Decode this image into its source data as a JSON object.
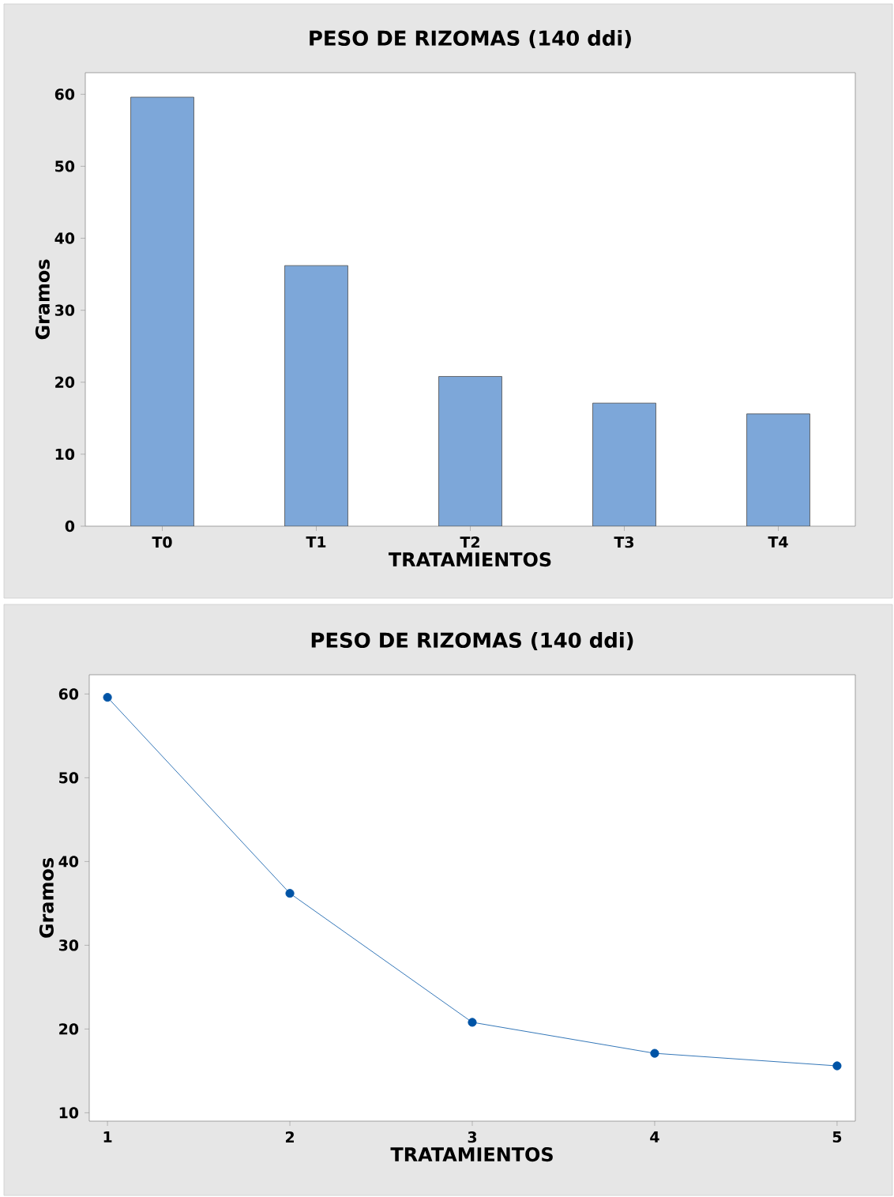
{
  "chart_data": [
    {
      "type": "bar",
      "title": "PESO DE RIZOMAS (140 ddi)",
      "xlabel": "TRATAMIENTOS",
      "ylabel": "Gramos",
      "categories": [
        "T0",
        "T1",
        "T2",
        "T3",
        "T4"
      ],
      "values": [
        59.6,
        36.2,
        20.8,
        17.1,
        15.6
      ],
      "color": "#7da7d9",
      "ylim": [
        0,
        63
      ],
      "yticks": [
        0,
        10,
        20,
        30,
        40,
        50,
        60
      ]
    },
    {
      "type": "line",
      "title": "PESO DE RIZOMAS (140 ddi)",
      "xlabel": "TRATAMIENTOS",
      "ylabel": "Gramos",
      "x": [
        1,
        2,
        3,
        4,
        5
      ],
      "values": [
        59.6,
        36.2,
        20.8,
        17.1,
        15.6
      ],
      "color": "#0054a6",
      "marker": "circle",
      "xlim": [
        0.9,
        5.1
      ],
      "xticks": [
        1,
        2,
        3,
        4,
        5
      ],
      "ylim": [
        9,
        62.3
      ],
      "yticks": [
        10,
        20,
        30,
        40,
        50,
        60
      ]
    }
  ]
}
